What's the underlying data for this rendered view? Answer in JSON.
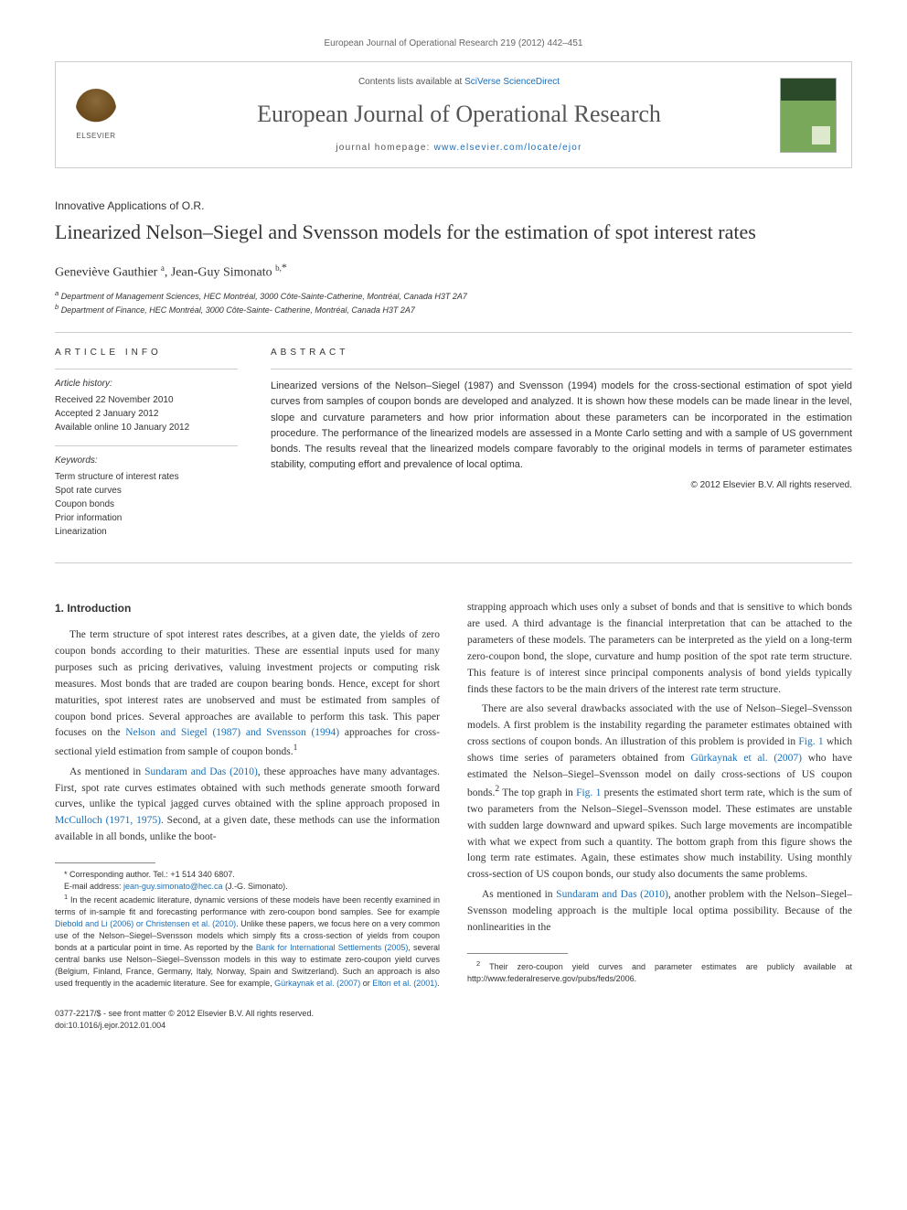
{
  "header": {
    "journal_ref": "European Journal of Operational Research 219 (2012) 442–451",
    "contents_prefix": "Contents lists available at ",
    "contents_link": "SciVerse ScienceDirect",
    "journal_title": "European Journal of Operational Research",
    "homepage_prefix": "journal homepage: ",
    "homepage_link": "www.elsevier.com/locate/ejor",
    "publisher": "ELSEVIER"
  },
  "article": {
    "section_label": "Innovative Applications of O.R.",
    "title": "Linearized Nelson–Siegel and Svensson models for the estimation of spot interest rates",
    "authors_html": "Geneviève Gauthier <sup>a</sup>, Jean-Guy Simonato <sup>b,</sup><span class='sym'>*</span>",
    "affiliations": [
      "a Department of Management Sciences, HEC Montréal, 3000 Côte-Sainte-Catherine, Montréal, Canada H3T 2A7",
      "b Department of Finance, HEC Montréal, 3000 Côte-Sainte- Catherine, Montréal, Canada H3T 2A7"
    ]
  },
  "info": {
    "heading_info": "ARTICLE INFO",
    "heading_abstract": "ABSTRACT",
    "history_label": "Article history:",
    "history_lines": "Received 22 November 2010\nAccepted 2 January 2012\nAvailable online 10 January 2012",
    "keywords_label": "Keywords:",
    "keywords_lines": "Term structure of interest rates\nSpot rate curves\nCoupon bonds\nPrior information\nLinearization"
  },
  "abstract": {
    "text": "Linearized versions of the Nelson–Siegel (1987) and Svensson (1994) models for the cross-sectional estimation of spot yield curves from samples of coupon bonds are developed and analyzed. It is shown how these models can be made linear in the level, slope and curvature parameters and how prior information about these parameters can be incorporated in the estimation procedure. The performance of the linearized models are assessed in a Monte Carlo setting and with a sample of US government bonds. The results reveal that the linearized models compare favorably to the original models in terms of parameter estimates stability, computing effort and prevalence of local optima.",
    "copyright": "© 2012 Elsevier B.V. All rights reserved."
  },
  "body": {
    "section_heading": "1. Introduction",
    "left_paras": [
      "The term structure of spot interest rates describes, at a given date, the yields of zero coupon bonds according to their maturities. These are essential inputs used for many purposes such as pricing derivatives, valuing investment projects or computing risk measures. Most bonds that are traded are coupon bearing bonds. Hence, except for short maturities, spot interest rates are unobserved and must be estimated from samples of coupon bond prices. Several approaches are available to perform this task. This paper focuses on the <span class='cite'>Nelson and Siegel (1987) and Svensson (1994)</span> approaches for cross-sectional yield estimation from sample of coupon bonds.<sup>1</sup>",
      "As mentioned in <span class='cite'>Sundaram and Das (2010)</span>, these approaches have many advantages. First, spot rate curves estimates obtained with such methods generate smooth forward curves, unlike the typical jagged curves obtained with the spline approach proposed in <span class='cite'>McCulloch (1971, 1975)</span>. Second, at a given date, these methods can use the information available in all bonds, unlike the boot-"
    ],
    "right_paras": [
      "strapping approach which uses only a subset of bonds and that is sensitive to which bonds are used. A third advantage is the financial interpretation that can be attached to the parameters of these models. The parameters can be interpreted as the yield on a long-term zero-coupon bond, the slope, curvature and hump position of the spot rate term structure. This feature is of interest since principal components analysis of bond yields typically finds these factors to be the main drivers of the interest rate term structure.",
      "There are also several drawbacks associated with the use of Nelson–Siegel–Svensson models. A first problem is the instability regarding the parameter estimates obtained with cross sections of coupon bonds. An illustration of this problem is provided in <span class='cite'>Fig. 1</span> which shows time series of parameters obtained from <span class='cite'>Gürkaynak et al. (2007)</span> who have estimated the Nelson–Siegel–Svensson model on daily cross-sections of US coupon bonds.<sup>2</sup> The top graph in <span class='cite'>Fig. 1</span> presents the estimated short term rate, which is the sum of two parameters from the Nelson–Siegel–Svensson model. These estimates are unstable with sudden large downward and upward spikes. Such large movements are incompatible with what we expect from such a quantity. The bottom graph from this figure shows the long term rate estimates. Again, these estimates show much instability. Using monthly cross-section of US coupon bonds, our study also documents the same problems.",
      "As mentioned in <span class='cite'>Sundaram and Das (2010)</span>, another problem with the Nelson–Siegel–Svensson modeling approach is the multiple local optima possibility. Because of the nonlinearities in the"
    ]
  },
  "footnotes": {
    "left": [
      "* Corresponding author. Tel.: +1 514 340 6807.",
      "E-mail address: <span class='link'>jean-guy.simonato@hec.ca</span> (J.-G. Simonato).",
      "<sup>1</sup> In the recent academic literature, dynamic versions of these models have been recently examined in terms of in-sample fit and forecasting performance with zero-coupon bond samples. See for example <span class='link'>Diebold and Li (2006) or Christensen et al. (2010)</span>. Unlike these papers, we focus here on a very common use of the Nelson–Siegel–Svensson models which simply fits a cross-section of yields from coupon bonds at a particular point in time. As reported by the <span class='link'>Bank for International Settlements (2005)</span>, several central banks use Nelson–Siegel–Svensson models in this way to estimate zero-coupon yield curves (Belgium, Finland, France, Germany, Italy, Norway, Spain and Switzerland). Such an approach is also used frequently in the academic literature. See for example, <span class='link'>Gürkaynak et al. (2007)</span> or <span class='link'>Elton et al. (2001)</span>."
    ],
    "right": [
      "<sup>2</sup> Their zero-coupon yield curves and parameter estimates are publicly available at http://www.federalreserve.gov/pubs/feds/2006."
    ]
  },
  "bottom": {
    "line1": "0377-2217/$ - see front matter © 2012 Elsevier B.V. All rights reserved.",
    "line2": "doi:10.1016/j.ejor.2012.01.004"
  },
  "colors": {
    "link": "#1a6fb8",
    "text": "#333333",
    "border": "#cccccc"
  }
}
